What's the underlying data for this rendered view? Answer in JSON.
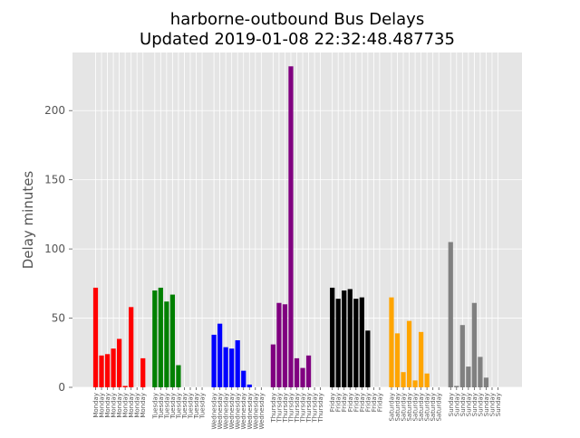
{
  "chart_data": {
    "type": "bar",
    "title": "harborne-outbound Bus Delays",
    "subtitle": "Updated 2019-01-08 22:32:48.487735",
    "xlabel": "",
    "ylabel": "Delay minutes",
    "ylim": [
      0,
      242
    ],
    "yticks": [
      0,
      50,
      100,
      150,
      200
    ],
    "grid": true,
    "groups": [
      {
        "day": "Monday",
        "color": "#ff0000",
        "values": [
          72,
          23,
          24,
          28,
          35,
          1,
          58,
          0,
          21
        ]
      },
      {
        "day": "Tuesday",
        "color": "#008000",
        "values": [
          70,
          72,
          62,
          67,
          16,
          0,
          0,
          0,
          0
        ]
      },
      {
        "day": "Wednesday",
        "color": "#0000ff",
        "values": [
          38,
          46,
          29,
          28,
          34,
          12,
          2,
          0,
          0
        ]
      },
      {
        "day": "Thursday",
        "color": "#800080",
        "values": [
          31,
          61,
          60,
          232,
          21,
          14,
          23,
          0,
          0
        ]
      },
      {
        "day": "Friday",
        "color": "#000000",
        "values": [
          72,
          64,
          70,
          71,
          64,
          65,
          41,
          0,
          0
        ]
      },
      {
        "day": "Saturday",
        "color": "#ffa500",
        "values": [
          65,
          39,
          11,
          48,
          5,
          40,
          10,
          0,
          0
        ]
      },
      {
        "day": "Sunday",
        "color": "#808080",
        "values": [
          105,
          1,
          45,
          15,
          61,
          22,
          7,
          0,
          0
        ]
      }
    ]
  }
}
